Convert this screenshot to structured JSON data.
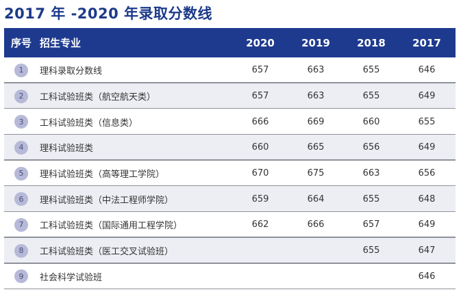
{
  "title": "2017 年 -2020 年录取分数线",
  "header": {
    "index": "序号",
    "major": "招生专业",
    "years": [
      "2020",
      "2019",
      "2018",
      "2017"
    ]
  },
  "rows": [
    {
      "index": "1",
      "major": "理科录取分数线",
      "scores": [
        "657",
        "663",
        "655",
        "646"
      ]
    },
    {
      "index": "2",
      "major": "工科试验班类（航空航天类）",
      "scores": [
        "657",
        "663",
        "655",
        "649"
      ]
    },
    {
      "index": "3",
      "major": "工科试验班类（信息类）",
      "scores": [
        "666",
        "669",
        "660",
        "655"
      ]
    },
    {
      "index": "4",
      "major": "理科试验班类",
      "scores": [
        "660",
        "665",
        "656",
        "649"
      ]
    },
    {
      "index": "5",
      "major": "理科试验班类（高等理工学院）",
      "scores": [
        "670",
        "675",
        "663",
        "656"
      ]
    },
    {
      "index": "6",
      "major": "理科试验班类（中法工程师学院）",
      "scores": [
        "659",
        "664",
        "655",
        "648"
      ]
    },
    {
      "index": "7",
      "major": "工科试验班类（国际通用工程学院）",
      "scores": [
        "662",
        "666",
        "657",
        "649"
      ]
    },
    {
      "index": "8",
      "major": "工科试验班类（医工交叉试验班）",
      "scores": [
        "",
        "",
        "655",
        "647"
      ]
    },
    {
      "index": "9",
      "major": "社会科学试验班",
      "scores": [
        "",
        "",
        "",
        "646"
      ]
    }
  ]
}
